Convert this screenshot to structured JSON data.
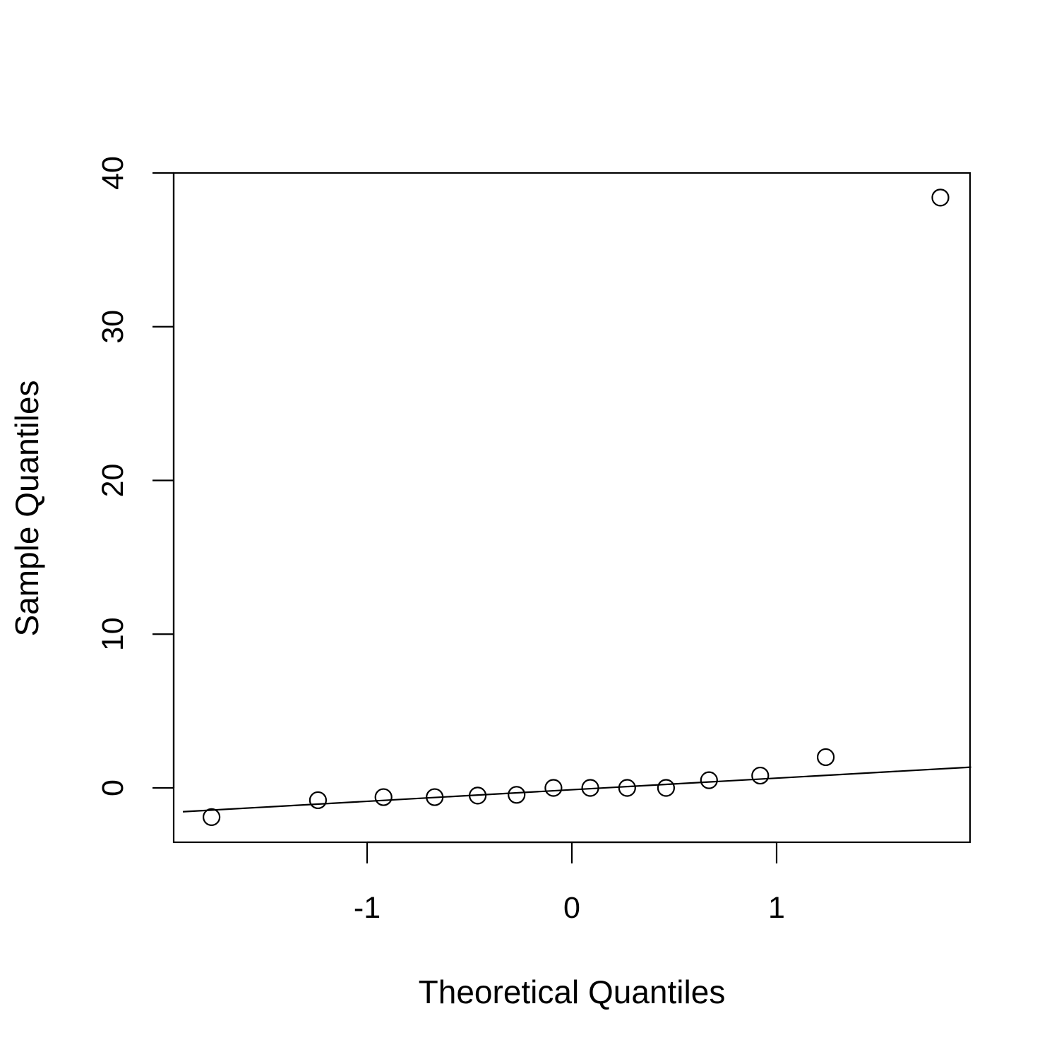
{
  "chart_data": {
    "type": "scatter",
    "title": "",
    "xlabel": "Theoretical Quantiles",
    "ylabel": "Sample Quantiles",
    "xlim": [
      -1.9,
      1.95
    ],
    "ylim": [
      -3.5,
      40
    ],
    "x_ticks": [
      -1,
      0,
      1
    ],
    "x_tick_labels": [
      "-1",
      "0",
      "1"
    ],
    "y_ticks": [
      0,
      10,
      20,
      30,
      40
    ],
    "y_tick_labels": [
      "0",
      "10",
      "20",
      "30",
      "40"
    ],
    "grid": false,
    "points": {
      "x": [
        -1.76,
        -1.24,
        -0.92,
        -0.67,
        -0.46,
        -0.27,
        -0.09,
        0.09,
        0.27,
        0.46,
        0.67,
        0.92,
        1.24,
        1.8
      ],
      "y": [
        -1.9,
        -0.8,
        -0.6,
        -0.6,
        -0.5,
        -0.45,
        0.0,
        0.0,
        0.0,
        0.0,
        0.5,
        0.8,
        2.0,
        38.4
      ]
    },
    "reference_line": {
      "x": [
        -1.9,
        1.95
      ],
      "y": [
        -1.55,
        1.35
      ]
    }
  }
}
